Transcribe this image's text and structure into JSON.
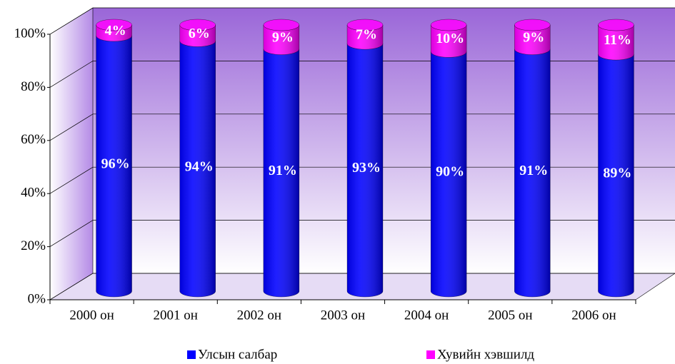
{
  "chart_data": {
    "type": "bar3d_stacked",
    "categories": [
      "2000 он",
      "2001 он",
      "2002 он",
      "2003 он",
      "2004 он",
      "2005 он",
      "2006 он"
    ],
    "series": [
      {
        "name": "Улсын салбар",
        "color": "#0000ff",
        "values": [
          96,
          94,
          91,
          93,
          90,
          91,
          89
        ],
        "value_labels": [
          "96%",
          "94%",
          "91%",
          "93%",
          "90%",
          "91%",
          "89%"
        ]
      },
      {
        "name": "Хувийн хэвшилд",
        "color": "#ff00ff",
        "values": [
          4,
          6,
          9,
          7,
          10,
          9,
          11
        ],
        "value_labels": [
          "4%",
          "6%",
          "9%",
          "7%",
          "10%",
          "9%",
          "11%"
        ]
      }
    ],
    "ylim": [
      0,
      100
    ],
    "yticks": [
      {
        "value": 0,
        "label": "0%"
      },
      {
        "value": 20,
        "label": "20%"
      },
      {
        "value": 40,
        "label": "40%"
      },
      {
        "value": 60,
        "label": "60%"
      },
      {
        "value": 80,
        "label": "80%"
      },
      {
        "value": 100,
        "label": "100%"
      }
    ],
    "grid": true,
    "legend": "bottom"
  }
}
